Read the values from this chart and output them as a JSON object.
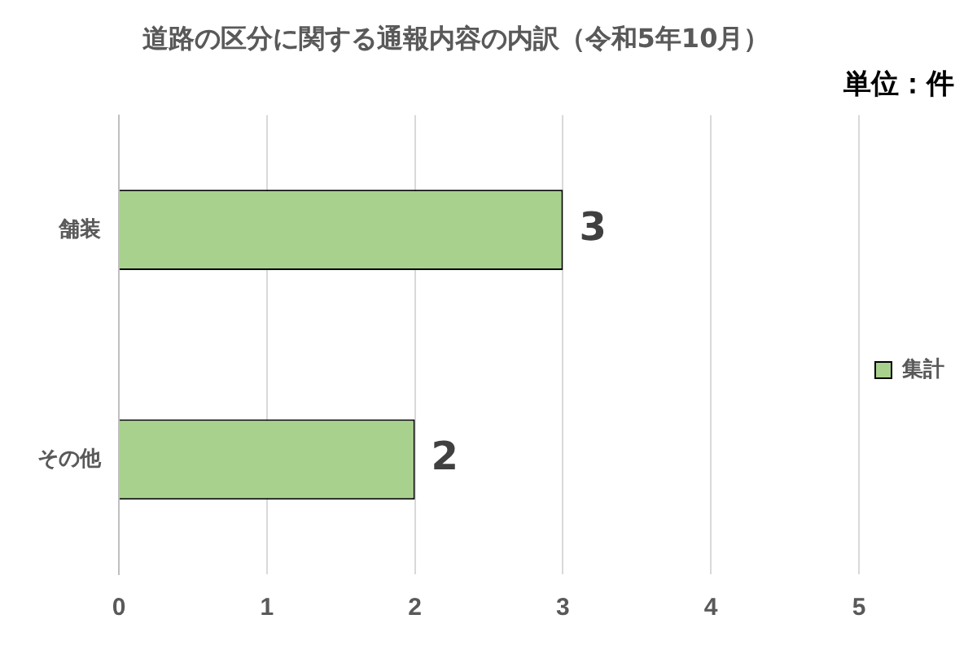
{
  "chart_data": {
    "type": "bar",
    "orientation": "horizontal",
    "title": "道路の区分に関する通報内容の内訳（令和5年10月）",
    "annotations": [
      "単位：件"
    ],
    "categories": [
      "舗装",
      "その他"
    ],
    "series": [
      {
        "name": "集計",
        "color": "#a9d18e",
        "values": [
          3,
          2
        ]
      }
    ],
    "xlim": [
      0,
      5
    ],
    "xticks": [
      0,
      1,
      2,
      3,
      4,
      5
    ],
    "grid": "x",
    "legend": "right",
    "data_labels": true
  }
}
